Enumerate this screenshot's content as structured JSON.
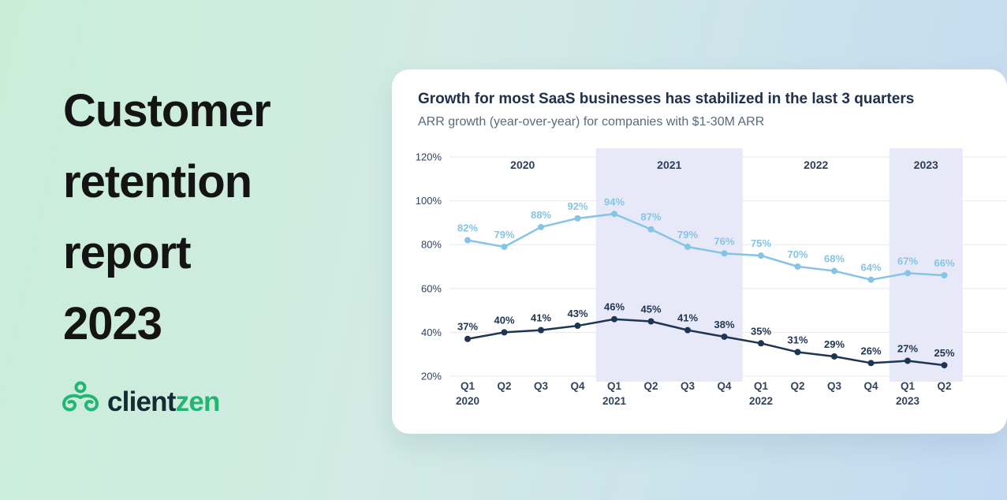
{
  "headline": {
    "lines": [
      "Customer",
      "retention",
      "report",
      "2023"
    ]
  },
  "logo": {
    "client_part": "client",
    "zen_part": "zen",
    "icon": "clientzen-zen-figure-icon",
    "green": "#22b573",
    "dark": "#152b33"
  },
  "card": {
    "title": "Growth for most SaaS businesses has stabilized in the last 3 quarters",
    "subtitle": "ARR growth (year-over-year) for companies with $1-30M ARR"
  },
  "chart_data": {
    "type": "line",
    "title": "Growth for most SaaS businesses has stabilized in the last 3 quarters",
    "subtitle": "ARR growth (year-over-year) for companies with $1-30M ARR",
    "unit": "%",
    "ylim": [
      20,
      120
    ],
    "yticks": [
      120,
      100,
      80,
      60,
      40,
      20
    ],
    "grid": true,
    "legend": "none",
    "x_labels": [
      {
        "q": "Q1",
        "year": "2020"
      },
      {
        "q": "Q2"
      },
      {
        "q": "Q3"
      },
      {
        "q": "Q4"
      },
      {
        "q": "Q1",
        "year": "2021"
      },
      {
        "q": "Q2"
      },
      {
        "q": "Q3"
      },
      {
        "q": "Q4"
      },
      {
        "q": "Q1",
        "year": "2022"
      },
      {
        "q": "Q2"
      },
      {
        "q": "Q3"
      },
      {
        "q": "Q4"
      },
      {
        "q": "Q1",
        "year": "2023"
      },
      {
        "q": "Q2"
      }
    ],
    "year_groups": [
      {
        "label": "2020",
        "start": 0,
        "end": 3,
        "shaded": false
      },
      {
        "label": "2021",
        "start": 4,
        "end": 7,
        "shaded": true
      },
      {
        "label": "2022",
        "start": 8,
        "end": 11,
        "shaded": false
      },
      {
        "label": "2023",
        "start": 12,
        "end": 13,
        "shaded": true
      }
    ],
    "series": [
      {
        "name": "upper-growth-line",
        "color": "#85c4e6",
        "values": [
          82,
          79,
          88,
          92,
          94,
          87,
          79,
          76,
          75,
          70,
          68,
          64,
          67,
          66
        ]
      },
      {
        "name": "lower-growth-line",
        "color": "#1d3452",
        "values": [
          37,
          40,
          41,
          43,
          46,
          45,
          41,
          38,
          35,
          31,
          29,
          26,
          27,
          25
        ]
      }
    ],
    "colors": {
      "band": "#e8e9f8",
      "grid": "#e8eaef",
      "axis_label": "#32425f",
      "year_label": "#2c3e5d"
    }
  }
}
